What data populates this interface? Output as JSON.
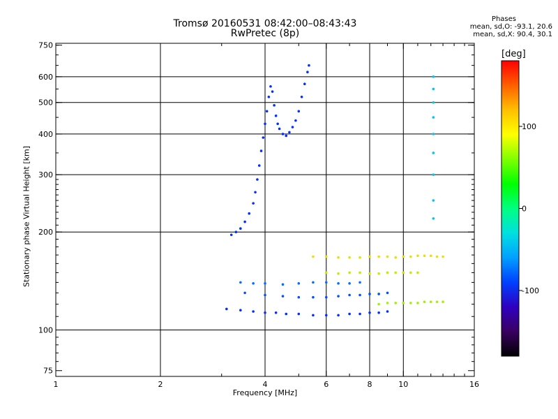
{
  "title": "Tromsø 20160531 08:42:00–08:43:43",
  "subtitle": "RwPretec (8p)",
  "stats": {
    "heading": "Phases",
    "o_line": "mean, sd,O: -93.1, 20.6",
    "x_line": "mean, sd,X:  90.4, 30.1"
  },
  "colorbar": {
    "label": "[deg]",
    "ticks": [
      100,
      0,
      -100
    ],
    "range": [
      -180,
      180
    ],
    "colors": [
      "#000000",
      "#3a0060",
      "#3000c0",
      "#0040ff",
      "#00a0ff",
      "#00e0e0",
      "#00ff80",
      "#00ff00",
      "#80ff00",
      "#ffff00",
      "#ffc000",
      "#ff6000",
      "#ff0000"
    ]
  },
  "chart_data": {
    "type": "scatter",
    "title": "Tromsø 20160531 08:42:00–08:43:43",
    "subtitle": "RwPretec (8p)",
    "xlabel": "Frequency [MHz]",
    "ylabel": "Stationary phase Virtual Height [km]",
    "x_scale": "log",
    "y_scale": "log",
    "xlim": [
      1,
      16
    ],
    "ylim": [
      72,
      760
    ],
    "x_ticks_labeled": [
      1,
      2,
      4,
      6,
      8,
      10,
      16
    ],
    "x_grid": [
      2,
      4,
      6,
      8,
      10
    ],
    "y_ticks_labeled": [
      75,
      100,
      200,
      300,
      400,
      500,
      600,
      750
    ],
    "y_grid": [
      100,
      200,
      300,
      400,
      500,
      600
    ],
    "grid": true,
    "series": [
      {
        "trace": "F-layer O-mode trace",
        "phase_deg": -100,
        "color": "#0030ff",
        "x": [
          3.2,
          3.3,
          3.4,
          3.5,
          3.6,
          3.7,
          3.75,
          3.8,
          3.85,
          3.9,
          3.95,
          4.0,
          4.05,
          4.1,
          4.15,
          4.2,
          4.25,
          4.3,
          4.35,
          4.4,
          4.5,
          4.6,
          4.7,
          4.8,
          4.9,
          5.0,
          5.1,
          5.2,
          5.3,
          5.35
        ],
        "y": [
          196,
          200,
          205,
          215,
          228,
          245,
          265,
          290,
          320,
          355,
          390,
          430,
          470,
          520,
          560,
          540,
          490,
          455,
          430,
          415,
          400,
          395,
          405,
          420,
          440,
          470,
          520,
          570,
          620,
          650
        ]
      },
      {
        "trace": "E-layer lower trace",
        "phase_deg": -100,
        "color": "#0030ff",
        "x": [
          3.1,
          3.4,
          3.7,
          4.0,
          4.3,
          4.6,
          5.0,
          5.5,
          6.0,
          6.5,
          7.0,
          7.5,
          8.0,
          8.5,
          9.0
        ],
        "y": [
          116,
          115,
          114,
          113,
          113,
          112,
          112,
          111,
          111,
          111,
          112,
          112,
          113,
          113,
          114
        ]
      },
      {
        "trace": "E-layer upper trace",
        "phase_deg": -100,
        "color": "#0050ff",
        "x": [
          3.5,
          4.0,
          4.5,
          5.0,
          5.5,
          6.0,
          6.5,
          7.0,
          7.5,
          8.0,
          8.5,
          9.0
        ],
        "y": [
          130,
          128,
          127,
          126,
          126,
          126,
          127,
          128,
          128,
          129,
          129,
          130
        ]
      },
      {
        "trace": "Multiple-echo band",
        "phase_deg": -85,
        "color": "#0070ff",
        "x": [
          3.4,
          3.7,
          4.0,
          4.5,
          5.0,
          5.5,
          6.0,
          6.5,
          7.0,
          7.5
        ],
        "y": [
          140,
          139,
          139,
          138,
          139,
          140,
          140,
          139,
          139,
          140
        ]
      },
      {
        "trace": "X-mode band 168 km",
        "phase_deg": 90,
        "color": "#e8e000",
        "x": [
          5.5,
          6.0,
          6.5,
          7.0,
          7.5,
          8.0,
          8.5,
          9.0,
          9.5,
          10.0,
          10.5,
          11.0,
          11.5,
          12.0,
          12.5,
          13.0
        ],
        "y": [
          168,
          168,
          167,
          167,
          167,
          168,
          168,
          168,
          167,
          168,
          168,
          169,
          169,
          169,
          168,
          168
        ]
      },
      {
        "trace": "X-mode band 150 km",
        "phase_deg": 80,
        "color": "#c8e800",
        "x": [
          6.0,
          6.5,
          7.0,
          7.5,
          8.0,
          8.5,
          9.0,
          9.5,
          10.0,
          10.5,
          11.0
        ],
        "y": [
          150,
          149,
          150,
          150,
          149,
          149,
          150,
          150,
          150,
          150,
          150
        ]
      },
      {
        "trace": "X-mode band 121 km",
        "phase_deg": 60,
        "color": "#a0f000",
        "x": [
          8.5,
          9.0,
          9.5,
          10.0,
          10.5,
          11.0,
          11.5,
          12.0,
          12.5,
          13.0
        ],
        "y": [
          120,
          121,
          121,
          121,
          121,
          121,
          122,
          122,
          122,
          122
        ]
      },
      {
        "trace": "Vertical column ~12 MHz",
        "phase_deg": -40,
        "color": "#00c8e8",
        "x": [
          12.2,
          12.2,
          12.2,
          12.2,
          12.2,
          12.2,
          12.2,
          12.2,
          12.2
        ],
        "y": [
          600,
          550,
          500,
          450,
          400,
          350,
          300,
          250,
          220
        ]
      }
    ]
  }
}
